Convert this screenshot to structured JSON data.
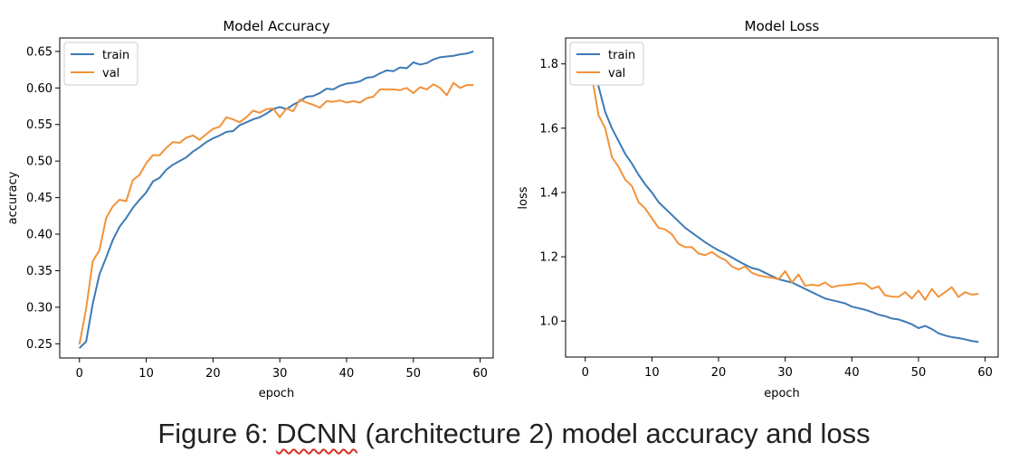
{
  "caption": {
    "prefix": "Figure 6: ",
    "flagged_word": "DCNN",
    "suffix": " (architecture 2) model accuracy and loss"
  },
  "colors": {
    "train": "#3d7ab5",
    "val": "#f2923a"
  },
  "chart_data": [
    {
      "type": "line",
      "title": "Model Accuracy",
      "xlabel": "epoch",
      "ylabel": "accuracy",
      "xlim": [
        -2.95,
        61.95
      ],
      "ylim": [
        0.2306,
        0.6684
      ],
      "xticks": [
        0,
        10,
        20,
        30,
        40,
        50,
        60
      ],
      "yticks": [
        0.25,
        0.3,
        0.35,
        0.4,
        0.45,
        0.5,
        0.55,
        0.6,
        0.65
      ],
      "ytick_labels": [
        "0.25",
        "0.30",
        "0.35",
        "0.40",
        "0.45",
        "0.50",
        "0.55",
        "0.60",
        "0.65"
      ],
      "grid": false,
      "legend_position": "upper-left",
      "x": [
        0,
        1,
        2,
        3,
        4,
        5,
        6,
        7,
        8,
        9,
        10,
        11,
        12,
        13,
        14,
        15,
        16,
        17,
        18,
        19,
        20,
        21,
        22,
        23,
        24,
        25,
        26,
        27,
        28,
        29,
        30,
        31,
        32,
        33,
        34,
        35,
        36,
        37,
        38,
        39,
        40,
        41,
        42,
        43,
        44,
        45,
        46,
        47,
        48,
        49,
        50,
        51,
        52,
        53,
        54,
        55,
        56,
        57,
        58,
        59
      ],
      "series": [
        {
          "name": "train",
          "values": [
            0.244,
            0.253,
            0.305,
            0.345,
            0.368,
            0.392,
            0.41,
            0.422,
            0.436,
            0.447,
            0.457,
            0.472,
            0.477,
            0.488,
            0.495,
            0.5,
            0.505,
            0.513,
            0.519,
            0.526,
            0.531,
            0.535,
            0.54,
            0.541,
            0.549,
            0.553,
            0.557,
            0.56,
            0.565,
            0.571,
            0.574,
            0.571,
            0.577,
            0.582,
            0.588,
            0.589,
            0.593,
            0.599,
            0.598,
            0.603,
            0.606,
            0.607,
            0.609,
            0.614,
            0.615,
            0.62,
            0.624,
            0.623,
            0.628,
            0.627,
            0.635,
            0.632,
            0.634,
            0.639,
            0.642,
            0.643,
            0.644,
            0.646,
            0.647,
            0.65
          ]
        },
        {
          "name": "val",
          "values": [
            0.249,
            0.298,
            0.363,
            0.378,
            0.422,
            0.438,
            0.447,
            0.445,
            0.474,
            0.481,
            0.497,
            0.508,
            0.508,
            0.518,
            0.526,
            0.525,
            0.532,
            0.535,
            0.529,
            0.537,
            0.544,
            0.547,
            0.56,
            0.557,
            0.553,
            0.56,
            0.569,
            0.566,
            0.571,
            0.572,
            0.56,
            0.572,
            0.568,
            0.584,
            0.58,
            0.577,
            0.573,
            0.582,
            0.581,
            0.583,
            0.58,
            0.582,
            0.58,
            0.586,
            0.588,
            0.598,
            0.598,
            0.598,
            0.597,
            0.6,
            0.593,
            0.601,
            0.598,
            0.605,
            0.6,
            0.59,
            0.607,
            0.6,
            0.604,
            0.604
          ]
        }
      ]
    },
    {
      "type": "line",
      "title": "Model Loss",
      "xlabel": "epoch",
      "ylabel": "loss",
      "xlim": [
        -2.95,
        61.95
      ],
      "ylim": [
        0.888,
        1.8807
      ],
      "xticks": [
        0,
        10,
        20,
        30,
        40,
        50,
        60
      ],
      "yticks": [
        1.0,
        1.2,
        1.4,
        1.6,
        1.8
      ],
      "ytick_labels": [
        "1.0",
        "1.2",
        "1.4",
        "1.6",
        "1.8"
      ],
      "grid": false,
      "legend_position": "upper-left",
      "x": [
        0,
        1,
        2,
        3,
        4,
        5,
        6,
        7,
        8,
        9,
        10,
        11,
        12,
        13,
        14,
        15,
        16,
        17,
        18,
        19,
        20,
        21,
        22,
        23,
        24,
        25,
        26,
        27,
        28,
        29,
        30,
        31,
        32,
        33,
        34,
        35,
        36,
        37,
        38,
        39,
        40,
        41,
        42,
        43,
        44,
        45,
        46,
        47,
        48,
        49,
        50,
        51,
        52,
        53,
        54,
        55,
        56,
        57,
        58,
        59
      ],
      "series": [
        {
          "name": "train",
          "values": [
            1.82,
            1.8,
            1.73,
            1.65,
            1.6,
            1.56,
            1.52,
            1.49,
            1.455,
            1.425,
            1.4,
            1.37,
            1.35,
            1.33,
            1.31,
            1.29,
            1.275,
            1.26,
            1.245,
            1.232,
            1.22,
            1.21,
            1.198,
            1.186,
            1.175,
            1.165,
            1.16,
            1.15,
            1.14,
            1.13,
            1.125,
            1.12,
            1.11,
            1.1,
            1.09,
            1.08,
            1.07,
            1.065,
            1.06,
            1.055,
            1.045,
            1.04,
            1.035,
            1.028,
            1.02,
            1.015,
            1.008,
            1.005,
            0.998,
            0.99,
            0.978,
            0.985,
            0.975,
            0.962,
            0.955,
            0.95,
            0.947,
            0.943,
            0.938,
            0.935
          ]
        },
        {
          "name": "val",
          "values": [
            1.82,
            1.76,
            1.64,
            1.6,
            1.51,
            1.48,
            1.44,
            1.42,
            1.37,
            1.35,
            1.32,
            1.29,
            1.285,
            1.27,
            1.24,
            1.23,
            1.23,
            1.21,
            1.205,
            1.215,
            1.2,
            1.19,
            1.17,
            1.16,
            1.17,
            1.15,
            1.142,
            1.138,
            1.135,
            1.13,
            1.155,
            1.12,
            1.145,
            1.11,
            1.113,
            1.11,
            1.12,
            1.105,
            1.11,
            1.112,
            1.114,
            1.118,
            1.116,
            1.1,
            1.108,
            1.08,
            1.076,
            1.075,
            1.09,
            1.07,
            1.095,
            1.066,
            1.1,
            1.075,
            1.09,
            1.105,
            1.075,
            1.09,
            1.082,
            1.085
          ]
        }
      ]
    }
  ]
}
